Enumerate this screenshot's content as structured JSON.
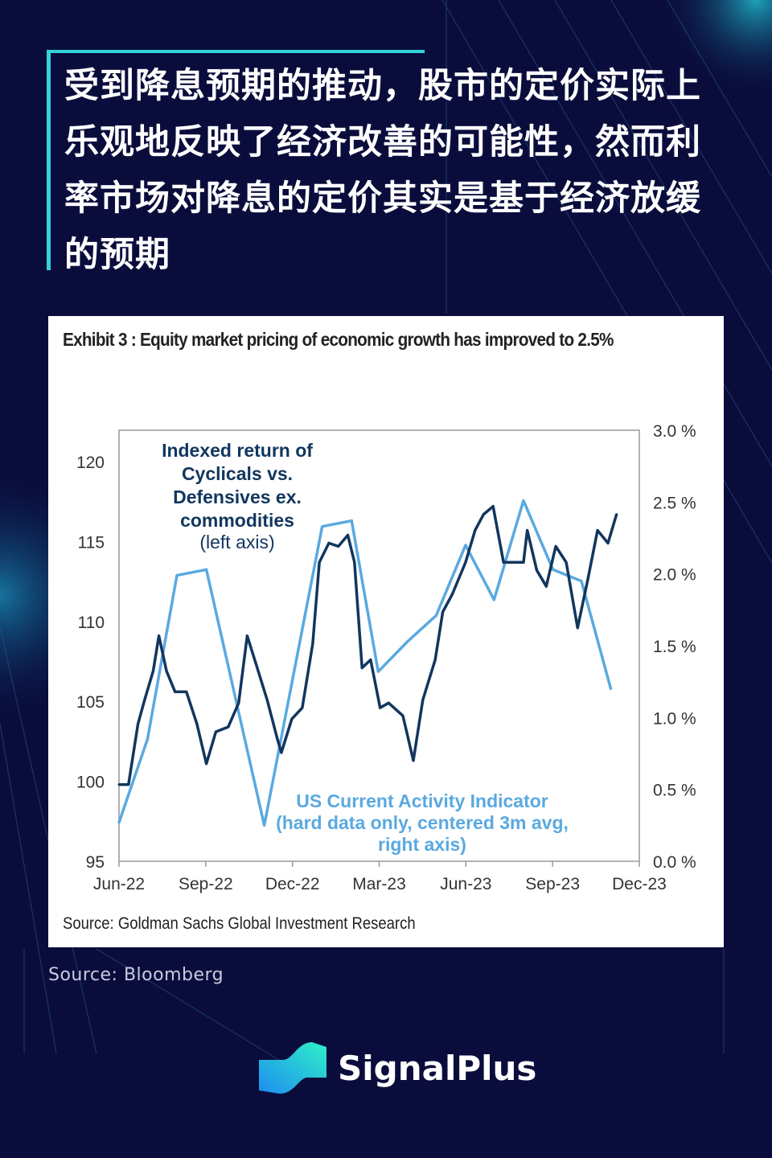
{
  "headline": "受到降息预期的推动，股市的定价实际上乐观地反映了经济改善的可能性，然而利率市场对降息的定价其实是基于经济放缓的预期",
  "source": "Source: Bloomberg",
  "brand": {
    "name": "SignalPlus",
    "icon": "signalplus-logo-icon"
  },
  "colors": {
    "background": "#0a0d3c",
    "accent": "#2fd3d8",
    "cyclicals": "#12365e",
    "cai": "#5aa9e0"
  },
  "chart_data": {
    "type": "line",
    "title": "Exhibit 3 : Equity market pricing of economic growth has improved to 2.5%",
    "source": "Source: Goldman Sachs Global Investment Research",
    "x_ticks": [
      "Jun-22",
      "Sep-22",
      "Dec-22",
      "Mar-23",
      "Jun-23",
      "Sep-23",
      "Dec-23"
    ],
    "xlim": [
      "2022-06-01",
      "2023-12-01"
    ],
    "y_left": {
      "ylim": [
        95,
        120
      ],
      "ticks": [
        "95",
        "100",
        "105",
        "110",
        "115",
        "120"
      ]
    },
    "y_right": {
      "ylim": [
        0,
        3.0
      ],
      "ticks": [
        "0.0 %",
        "0.5 %",
        "1.0 %",
        "1.5 %",
        "2.0 %",
        "2.5 %",
        "3.0 %"
      ]
    },
    "grid": false,
    "annotations": {
      "cyclicals": [
        "Indexed return of",
        "Cyclicals vs.",
        "Defensives ex.",
        "commodities",
        "(left axis)"
      ],
      "cai": [
        "US Current Activity Indicator",
        "(hard data only, centered 3m avg,",
        "right axis)"
      ]
    },
    "series": [
      {
        "name": "Indexed return of Cyclicals vs. Defensives ex. commodities",
        "axis": "left",
        "x": [
          "2022-06-01",
          "2022-06-11",
          "2022-06-21",
          "2022-06-28",
          "2022-07-07",
          "2022-07-13",
          "2022-07-21",
          "2022-07-30",
          "2022-08-11",
          "2022-08-22",
          "2022-09-01",
          "2022-09-11",
          "2022-09-24",
          "2022-10-05",
          "2022-10-14",
          "2022-10-23",
          "2022-11-04",
          "2022-11-15",
          "2022-11-19",
          "2022-11-30",
          "2022-12-11",
          "2022-12-22",
          "2022-12-29",
          "2023-01-08",
          "2023-01-18",
          "2023-01-28",
          "2023-02-04",
          "2023-02-12",
          "2023-02-21",
          "2023-03-03",
          "2023-03-12",
          "2023-03-27",
          "2023-04-07",
          "2023-04-17",
          "2023-04-30",
          "2023-05-08",
          "2023-05-18",
          "2023-06-01",
          "2023-06-11",
          "2023-06-20",
          "2023-06-30",
          "2023-07-11",
          "2023-07-21",
          "2023-08-01",
          "2023-08-05",
          "2023-08-15",
          "2023-08-25",
          "2023-09-04",
          "2023-09-15",
          "2023-09-27",
          "2023-10-08",
          "2023-10-18",
          "2023-10-29",
          "2023-11-07"
        ],
        "values": [
          99.8,
          99.8,
          103.6,
          105.1,
          106.9,
          109.1,
          106.9,
          105.6,
          105.6,
          103.6,
          101.1,
          103.1,
          103.4,
          104.9,
          109.1,
          107.4,
          105.1,
          102.6,
          101.8,
          103.9,
          104.6,
          108.6,
          113.7,
          114.9,
          114.7,
          115.4,
          113.7,
          107.1,
          107.6,
          104.6,
          104.9,
          104.1,
          101.3,
          105.1,
          107.6,
          110.6,
          111.7,
          113.7,
          115.7,
          116.7,
          117.2,
          113.7,
          113.7,
          113.7,
          115.7,
          113.2,
          112.2,
          114.7,
          113.7,
          109.6,
          112.7,
          115.7,
          114.9,
          116.7
        ]
      },
      {
        "name": "US Current Activity Indicator (hard data only, centered 3m avg, right axis)",
        "axis": "right",
        "x": [
          "2022-06-01",
          "2022-07-01",
          "2022-08-01",
          "2022-09-01",
          "2022-11-01",
          "2023-01-01",
          "2023-02-01",
          "2023-03-01",
          "2023-04-01",
          "2023-05-01",
          "2023-06-01",
          "2023-07-01",
          "2023-08-01",
          "2023-09-01",
          "2023-10-01",
          "2023-11-01"
        ],
        "values": [
          0.27,
          0.85,
          1.99,
          2.03,
          0.25,
          2.33,
          2.37,
          1.32,
          1.53,
          1.71,
          2.2,
          1.82,
          2.51,
          2.03,
          1.95,
          1.2
        ]
      }
    ]
  }
}
